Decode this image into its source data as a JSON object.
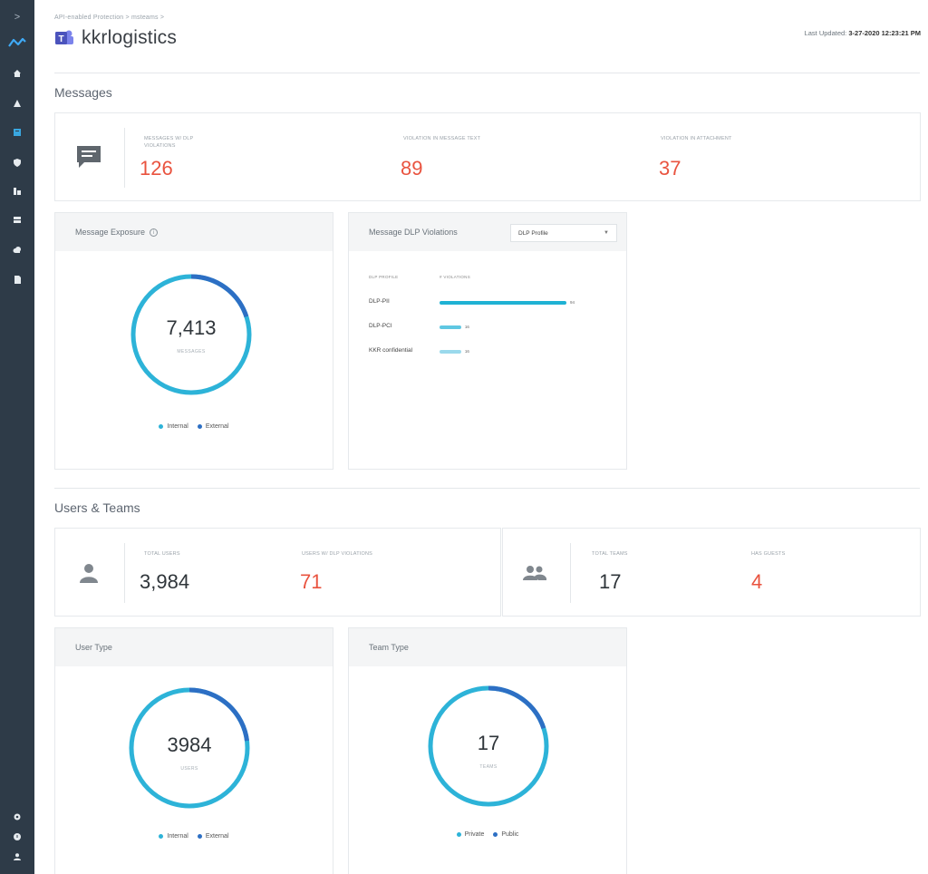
{
  "sidebar": {
    "expand_glyph": ">",
    "icons": [
      "home-icon",
      "alert-icon",
      "dashboard-icon",
      "shield-icon",
      "policy-icon",
      "server-icon",
      "cloud-icon",
      "file-icon"
    ],
    "bottom_icons": [
      "settings-icon",
      "help-icon",
      "user-icon"
    ],
    "active_index": 2
  },
  "header": {
    "breadcrumb": "API-enabled Protection > msteams >",
    "title": "kkrlogistics",
    "last_updated_label": "Last Updated:",
    "last_updated_value": "3-27-2020 12:23:21 PM"
  },
  "messages": {
    "section_title": "Messages",
    "stats": [
      {
        "label": "MESSAGES W/ DLP VIOLATIONS",
        "value": "126"
      },
      {
        "label": "VIOLATION IN MESSAGE TEXT",
        "value": "89"
      },
      {
        "label": "VIOLATION IN ATTACHMENT",
        "value": "37"
      }
    ],
    "exposure": {
      "title": "Message Exposure",
      "total": "7,413",
      "unit": "MESSAGES",
      "legend": [
        {
          "name": "Internal",
          "color": "#2db3d8"
        },
        {
          "name": "External",
          "color": "#2d6fc4"
        }
      ],
      "external_fraction": 0.2
    },
    "dlp": {
      "title": "Message DLP Violations",
      "select_value": "DLP Profile",
      "col_profile": "DLP PROFILE",
      "col_violations": "# VIOLATIONS",
      "rows": [
        {
          "label": "DLP-PII",
          "value": 94,
          "value_text": "94",
          "color": "#1fb2d4"
        },
        {
          "label": "DLP-PCI",
          "value": 16,
          "value_text": "16",
          "color": "#5fc7e2"
        },
        {
          "label": "KKR confidential",
          "value": 16,
          "value_text": "16",
          "color": "#9ad9ec"
        }
      ],
      "max": 94
    }
  },
  "users_teams": {
    "section_title": "Users & Teams",
    "users": [
      {
        "label": "TOTAL USERS",
        "value": "3,984",
        "tone": "dark"
      },
      {
        "label": "USERS W/ DLP VIOLATIONS",
        "value": "71",
        "tone": "red"
      }
    ],
    "teams": [
      {
        "label": "TOTAL TEAMS",
        "value": "17",
        "tone": "dark"
      },
      {
        "label": "HAS GUESTS",
        "value": "4",
        "tone": "red"
      }
    ],
    "user_type": {
      "title": "User Type",
      "total": "3984",
      "unit": "USERS",
      "legend": [
        {
          "name": "Internal",
          "color": "#2db3d8"
        },
        {
          "name": "External",
          "color": "#2d6fc4"
        }
      ],
      "external_fraction": 0.23
    },
    "team_type": {
      "title": "Team Type",
      "total": "17",
      "unit": "TEAMS",
      "legend": [
        {
          "name": "Private",
          "color": "#2db3d8"
        },
        {
          "name": "Public",
          "color": "#2d6fc4"
        }
      ],
      "external_fraction": 0.2
    }
  }
}
